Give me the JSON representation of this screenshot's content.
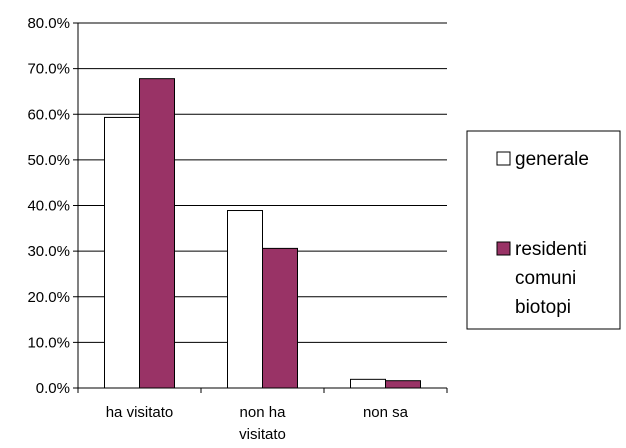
{
  "chart_data": {
    "type": "bar",
    "categories": [
      [
        "ha visitato"
      ],
      [
        "non ha",
        "visitato"
      ],
      [
        "non sa"
      ]
    ],
    "series": [
      {
        "name": [
          "generale"
        ],
        "values": [
          59.3,
          38.9,
          1.9
        ],
        "color": "#ffffff"
      },
      {
        "name": [
          "residenti",
          "comuni",
          "biotopi"
        ],
        "values": [
          67.8,
          30.6,
          1.6
        ],
        "color": "#993366"
      }
    ],
    "yticks": [
      "0.0%",
      "10.0%",
      "20.0%",
      "30.0%",
      "40.0%",
      "50.0%",
      "60.0%",
      "70.0%",
      "80.0%"
    ],
    "ylim": [
      0,
      80
    ],
    "grid": true,
    "legend_position": "right"
  }
}
